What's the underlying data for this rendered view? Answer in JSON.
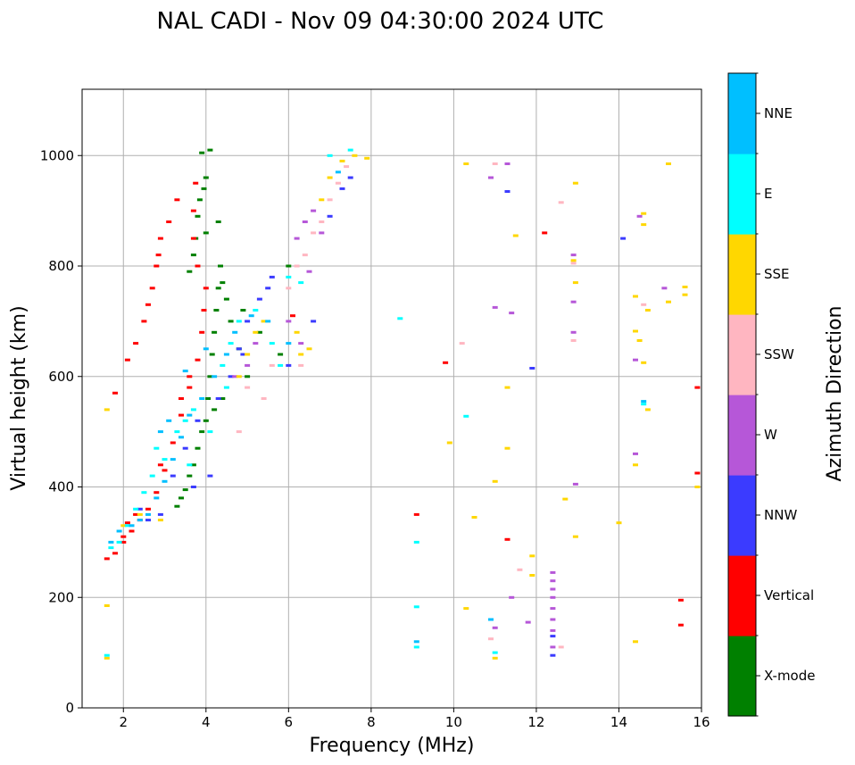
{
  "chart_data": {
    "type": "scatter",
    "title": "NAL CADI - Nov 09 04:30:00 2024 UTC",
    "xlabel": "Frequency (MHz)",
    "ylabel": "Virtual height (km)",
    "xlim": [
      1,
      16
    ],
    "ylim": [
      0,
      1120
    ],
    "xticks": [
      2,
      4,
      6,
      8,
      10,
      12,
      14,
      16
    ],
    "yticks": [
      0,
      200,
      400,
      600,
      800,
      1000
    ],
    "grid": true,
    "colorbar": {
      "title": "Azimuth Direction",
      "categories": [
        {
          "name": "X-mode",
          "color": "#008000"
        },
        {
          "name": "Vertical",
          "color": "#ff0000"
        },
        {
          "name": "NNW",
          "color": "#3b3bff"
        },
        {
          "name": "W",
          "color": "#b657d8"
        },
        {
          "name": "SSW",
          "color": "#ffb6c1"
        },
        {
          "name": "SSE",
          "color": "#ffd700"
        },
        {
          "name": "E",
          "color": "#00ffff"
        },
        {
          "name": "NNE",
          "color": "#00bfff"
        }
      ]
    },
    "series": [
      {
        "name": "X-mode",
        "points": [
          [
            3.3,
            365
          ],
          [
            3.4,
            380
          ],
          [
            3.5,
            395
          ],
          [
            3.6,
            420
          ],
          [
            3.7,
            440
          ],
          [
            3.8,
            470
          ],
          [
            3.9,
            500
          ],
          [
            4.0,
            520
          ],
          [
            4.05,
            560
          ],
          [
            4.1,
            600
          ],
          [
            4.15,
            640
          ],
          [
            4.2,
            680
          ],
          [
            4.25,
            720
          ],
          [
            4.3,
            760
          ],
          [
            4.35,
            800
          ],
          [
            4.0,
            860
          ],
          [
            3.95,
            940
          ],
          [
            3.9,
            1005
          ],
          [
            4.1,
            1010
          ],
          [
            3.8,
            890
          ],
          [
            3.75,
            850
          ],
          [
            3.85,
            920
          ],
          [
            4.5,
            740
          ],
          [
            4.6,
            700
          ],
          [
            4.8,
            650
          ],
          [
            5.0,
            600
          ],
          [
            4.4,
            560
          ],
          [
            4.2,
            540
          ],
          [
            3.6,
            790
          ],
          [
            3.7,
            820
          ],
          [
            4.4,
            770
          ],
          [
            4.9,
            720
          ],
          [
            5.3,
            680
          ],
          [
            5.8,
            640
          ],
          [
            6.0,
            800
          ],
          [
            4.3,
            880
          ],
          [
            4.0,
            960
          ]
        ]
      },
      {
        "name": "Vertical",
        "points": [
          [
            1.6,
            270
          ],
          [
            1.8,
            280
          ],
          [
            2.0,
            300
          ],
          [
            2.2,
            320
          ],
          [
            2.4,
            340
          ],
          [
            2.6,
            360
          ],
          [
            2.8,
            390
          ],
          [
            3.0,
            430
          ],
          [
            3.2,
            480
          ],
          [
            3.4,
            530
          ],
          [
            3.6,
            580
          ],
          [
            3.8,
            630
          ],
          [
            3.9,
            680
          ],
          [
            3.95,
            720
          ],
          [
            4.0,
            760
          ],
          [
            3.8,
            800
          ],
          [
            3.7,
            850
          ],
          [
            3.7,
            900
          ],
          [
            3.75,
            950
          ],
          [
            1.8,
            570
          ],
          [
            2.1,
            630
          ],
          [
            2.3,
            660
          ],
          [
            2.5,
            700
          ],
          [
            2.6,
            730
          ],
          [
            2.7,
            760
          ],
          [
            2.8,
            800
          ],
          [
            2.85,
            820
          ],
          [
            2.9,
            850
          ],
          [
            3.1,
            880
          ],
          [
            3.3,
            920
          ],
          [
            2.0,
            310
          ],
          [
            2.3,
            350
          ],
          [
            2.1,
            335
          ],
          [
            6.1,
            710
          ],
          [
            9.1,
            350
          ],
          [
            9.8,
            625
          ],
          [
            11.3,
            305
          ],
          [
            12.2,
            860
          ],
          [
            15.5,
            150
          ],
          [
            15.5,
            195
          ],
          [
            15.9,
            425
          ],
          [
            15.9,
            580
          ],
          [
            2.9,
            440
          ],
          [
            3.4,
            560
          ],
          [
            3.6,
            600
          ]
        ]
      },
      {
        "name": "NNW",
        "points": [
          [
            2.6,
            340
          ],
          [
            2.9,
            350
          ],
          [
            3.2,
            420
          ],
          [
            3.5,
            470
          ],
          [
            3.8,
            520
          ],
          [
            4.1,
            420
          ],
          [
            4.3,
            560
          ],
          [
            4.6,
            600
          ],
          [
            4.8,
            650
          ],
          [
            5.0,
            700
          ],
          [
            5.3,
            740
          ],
          [
            5.6,
            780
          ],
          [
            6.0,
            620
          ],
          [
            6.6,
            700
          ],
          [
            7.0,
            890
          ],
          [
            7.3,
            940
          ],
          [
            7.5,
            960
          ],
          [
            11.3,
            935
          ],
          [
            11.9,
            615
          ],
          [
            12.4,
            95
          ],
          [
            12.4,
            130
          ],
          [
            14.1,
            850
          ],
          [
            2.4,
            360
          ],
          [
            3.7,
            400
          ],
          [
            4.9,
            640
          ],
          [
            5.5,
            760
          ]
        ]
      },
      {
        "name": "W",
        "points": [
          [
            4.7,
            600
          ],
          [
            5.0,
            620
          ],
          [
            5.2,
            660
          ],
          [
            6.2,
            850
          ],
          [
            6.4,
            880
          ],
          [
            6.6,
            900
          ],
          [
            6.3,
            660
          ],
          [
            6.0,
            700
          ],
          [
            10.9,
            960
          ],
          [
            11.0,
            725
          ],
          [
            11.3,
            985
          ],
          [
            11.4,
            715
          ],
          [
            11.8,
            155
          ],
          [
            11.4,
            200
          ],
          [
            11.0,
            145
          ],
          [
            12.4,
            110
          ],
          [
            12.4,
            140
          ],
          [
            12.4,
            160
          ],
          [
            12.4,
            180
          ],
          [
            12.4,
            200
          ],
          [
            12.4,
            215
          ],
          [
            12.4,
            230
          ],
          [
            12.4,
            245
          ],
          [
            12.9,
            820
          ],
          [
            12.9,
            735
          ],
          [
            12.9,
            680
          ],
          [
            12.95,
            405
          ],
          [
            14.4,
            630
          ],
          [
            14.5,
            890
          ],
          [
            14.4,
            460
          ],
          [
            15.1,
            760
          ],
          [
            6.5,
            790
          ],
          [
            6.8,
            860
          ]
        ]
      },
      {
        "name": "SSW",
        "points": [
          [
            5.0,
            580
          ],
          [
            5.4,
            560
          ],
          [
            4.8,
            500
          ],
          [
            6.2,
            800
          ],
          [
            6.4,
            820
          ],
          [
            6.6,
            860
          ],
          [
            6.8,
            880
          ],
          [
            7.0,
            920
          ],
          [
            7.2,
            950
          ],
          [
            7.4,
            980
          ],
          [
            6.3,
            620
          ],
          [
            10.2,
            660
          ],
          [
            10.9,
            125
          ],
          [
            11.0,
            985
          ],
          [
            11.6,
            250
          ],
          [
            12.6,
            110
          ],
          [
            12.6,
            915
          ],
          [
            12.9,
            805
          ],
          [
            12.9,
            665
          ],
          [
            14.6,
            730
          ],
          [
            6.0,
            760
          ],
          [
            5.6,
            620
          ]
        ]
      },
      {
        "name": "SSE",
        "points": [
          [
            1.6,
            185
          ],
          [
            1.6,
            90
          ],
          [
            1.6,
            540
          ],
          [
            2.0,
            330
          ],
          [
            2.4,
            350
          ],
          [
            2.9,
            340
          ],
          [
            4.8,
            600
          ],
          [
            5.0,
            640
          ],
          [
            5.2,
            680
          ],
          [
            5.4,
            700
          ],
          [
            6.2,
            680
          ],
          [
            6.3,
            640
          ],
          [
            6.5,
            650
          ],
          [
            6.8,
            920
          ],
          [
            7.0,
            960
          ],
          [
            7.3,
            990
          ],
          [
            7.6,
            1000
          ],
          [
            7.9,
            995
          ],
          [
            9.9,
            480
          ],
          [
            10.3,
            985
          ],
          [
            10.3,
            180
          ],
          [
            10.5,
            345
          ],
          [
            11.0,
            410
          ],
          [
            11.0,
            90
          ],
          [
            11.3,
            580
          ],
          [
            11.3,
            470
          ],
          [
            11.5,
            855
          ],
          [
            11.9,
            275
          ],
          [
            11.9,
            240
          ],
          [
            12.7,
            378
          ],
          [
            12.95,
            950
          ],
          [
            12.95,
            770
          ],
          [
            12.95,
            310
          ],
          [
            14.0,
            335
          ],
          [
            14.4,
            745
          ],
          [
            14.4,
            120
          ],
          [
            14.4,
            440
          ],
          [
            14.5,
            665
          ],
          [
            14.6,
            625
          ],
          [
            14.6,
            875
          ],
          [
            14.6,
            895
          ],
          [
            14.7,
            720
          ],
          [
            14.7,
            540
          ],
          [
            15.2,
            985
          ],
          [
            15.2,
            735
          ],
          [
            15.6,
            762
          ],
          [
            15.6,
            748
          ],
          [
            15.9,
            400
          ],
          [
            12.9,
            810
          ],
          [
            14.4,
            682
          ]
        ]
      },
      {
        "name": "E",
        "points": [
          [
            1.6,
            95
          ],
          [
            1.7,
            290
          ],
          [
            1.9,
            300
          ],
          [
            2.1,
            330
          ],
          [
            2.3,
            360
          ],
          [
            2.5,
            390
          ],
          [
            2.7,
            420
          ],
          [
            3.0,
            450
          ],
          [
            3.3,
            500
          ],
          [
            3.5,
            520
          ],
          [
            3.7,
            540
          ],
          [
            4.1,
            500
          ],
          [
            4.4,
            620
          ],
          [
            4.6,
            660
          ],
          [
            4.8,
            700
          ],
          [
            5.2,
            720
          ],
          [
            5.6,
            660
          ],
          [
            5.8,
            620
          ],
          [
            6.0,
            780
          ],
          [
            6.3,
            770
          ],
          [
            7.0,
            1000
          ],
          [
            7.5,
            1010
          ],
          [
            8.7,
            705
          ],
          [
            9.1,
            300
          ],
          [
            9.1,
            110
          ],
          [
            9.1,
            183
          ],
          [
            10.3,
            528
          ],
          [
            11.0,
            100
          ],
          [
            14.6,
            550
          ],
          [
            2.8,
            470
          ],
          [
            3.6,
            440
          ],
          [
            4.5,
            580
          ]
        ]
      },
      {
        "name": "NNE",
        "points": [
          [
            1.7,
            300
          ],
          [
            1.9,
            320
          ],
          [
            2.2,
            330
          ],
          [
            2.4,
            340
          ],
          [
            2.6,
            350
          ],
          [
            2.8,
            380
          ],
          [
            3.0,
            410
          ],
          [
            3.2,
            450
          ],
          [
            3.4,
            490
          ],
          [
            3.6,
            530
          ],
          [
            3.9,
            560
          ],
          [
            4.2,
            600
          ],
          [
            4.5,
            640
          ],
          [
            4.7,
            680
          ],
          [
            5.1,
            710
          ],
          [
            5.5,
            700
          ],
          [
            6.0,
            660
          ],
          [
            7.2,
            970
          ],
          [
            9.1,
            120
          ],
          [
            10.9,
            160
          ],
          [
            14.6,
            555
          ],
          [
            3.1,
            520
          ],
          [
            2.9,
            500
          ],
          [
            3.5,
            610
          ],
          [
            4.0,
            650
          ]
        ]
      }
    ]
  }
}
